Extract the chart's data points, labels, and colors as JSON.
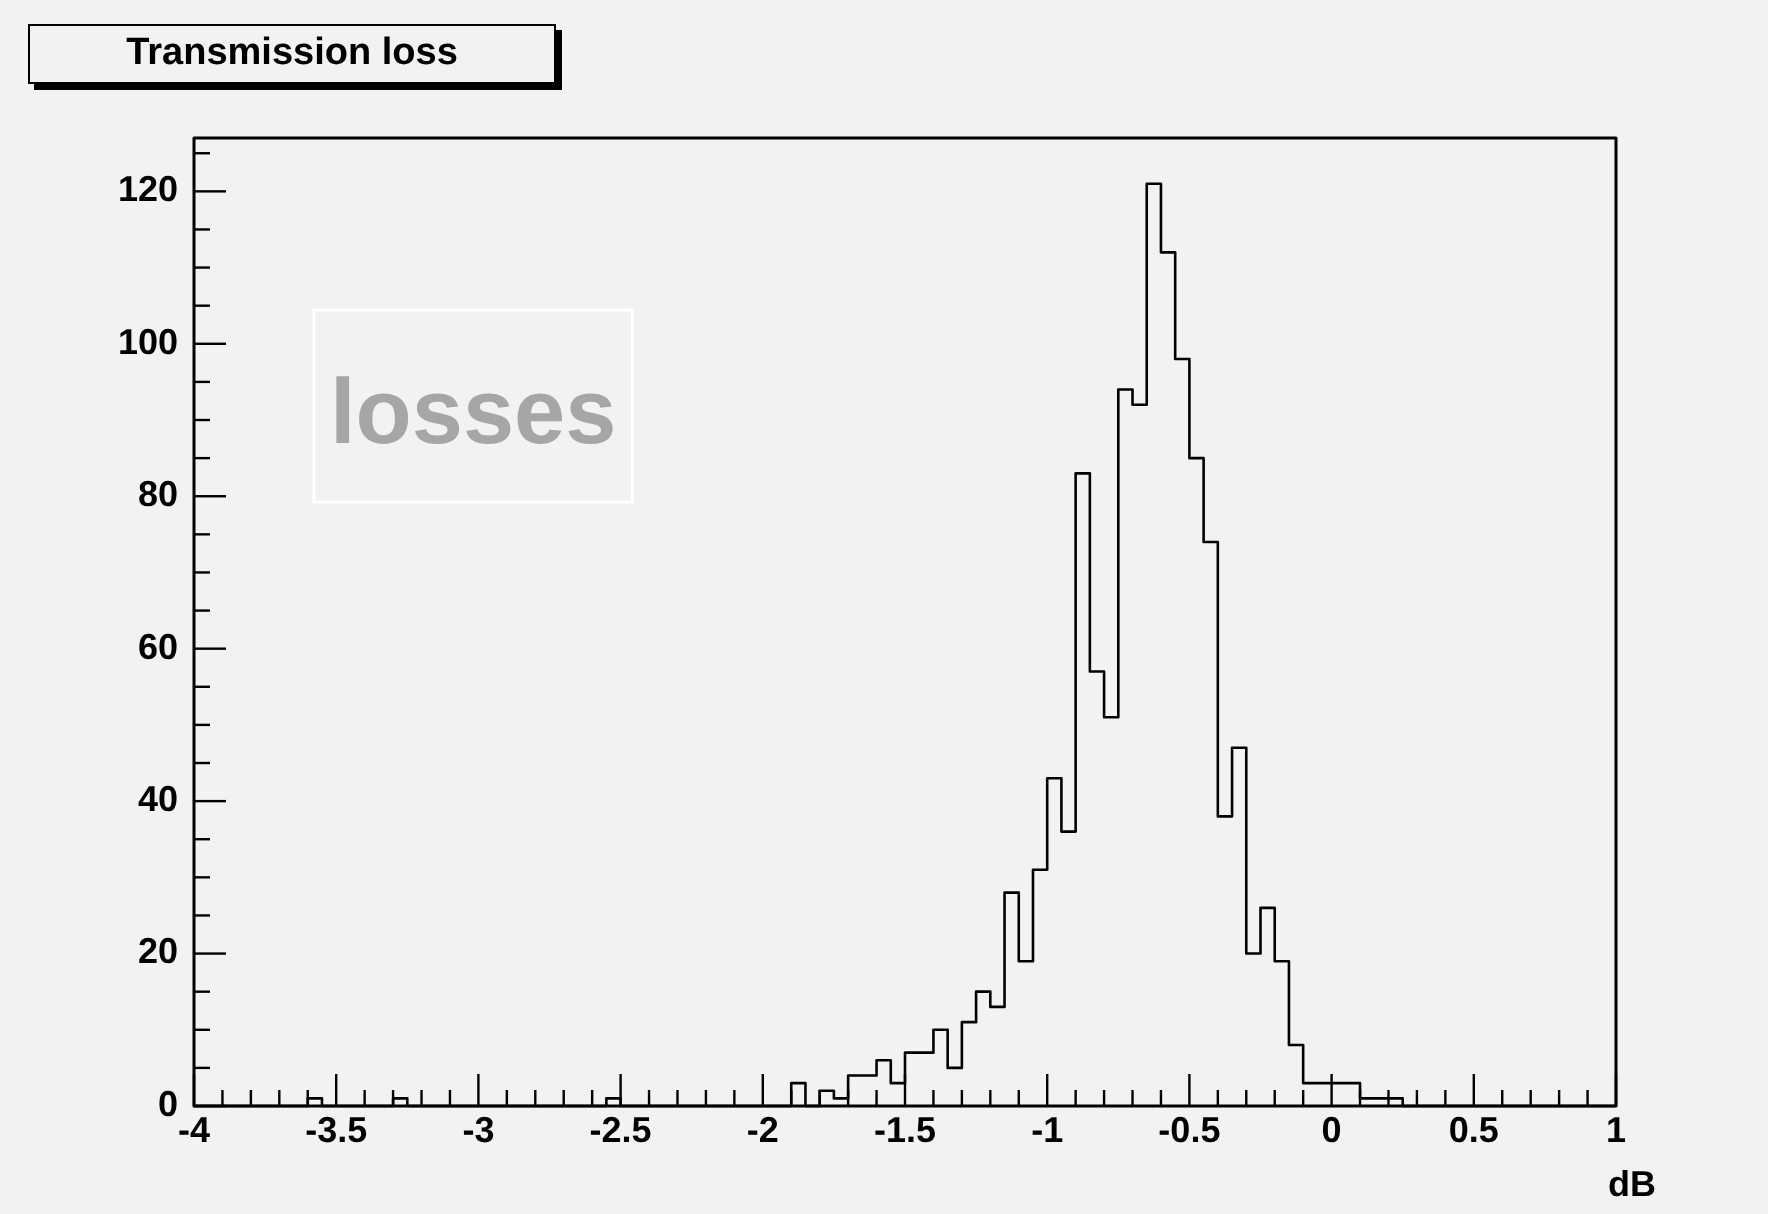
{
  "chart_data": {
    "type": "histogram",
    "title": "Transmission loss",
    "xlabel": "dB",
    "annotations": [
      "losses"
    ],
    "bins": [
      -4,
      -3.95,
      -3.9,
      -3.85,
      -3.8,
      -3.75,
      -3.7,
      -3.65,
      -3.6,
      -3.55,
      -3.5,
      -3.45,
      -3.4,
      -3.35,
      -3.3,
      -3.25,
      -3.2,
      -3.15,
      -3.1,
      -3.05,
      -3,
      -2.95,
      -2.9,
      -2.85,
      -2.8,
      -2.75,
      -2.7,
      -2.65,
      -2.6,
      -2.55,
      -2.5,
      -2.45,
      -2.4,
      -2.35,
      -2.3,
      -2.25,
      -2.2,
      -2.15,
      -2.1,
      -2.05,
      -2,
      -1.95,
      -1.9,
      -1.85,
      -1.8,
      -1.75,
      -1.7,
      -1.65,
      -1.6,
      -1.55,
      -1.5,
      -1.45,
      -1.4,
      -1.35,
      -1.3,
      -1.25,
      -1.2,
      -1.15,
      -1.1,
      -1.05,
      -1,
      -0.95,
      -0.9,
      -0.85,
      -0.8,
      -0.75,
      -0.7,
      -0.65,
      -0.6,
      -0.55,
      -0.5,
      -0.45,
      -0.4,
      -0.35,
      -0.3,
      -0.25,
      -0.2,
      -0.15,
      -0.1,
      -0.05,
      0,
      0.05,
      0.1,
      0.15,
      0.2,
      0.25,
      0.3,
      0.35,
      0.4,
      0.45,
      0.5,
      0.55,
      0.6,
      0.65,
      0.7,
      0.75,
      0.8,
      0.85,
      0.9,
      0.95,
      1
    ],
    "values": [
      0,
      0,
      0,
      0,
      0,
      0,
      0,
      0,
      1,
      0,
      0,
      0,
      0,
      0,
      1,
      0,
      0,
      0,
      0,
      0,
      0,
      0,
      0,
      0,
      0,
      0,
      0,
      0,
      0,
      1,
      0,
      0,
      0,
      0,
      0,
      0,
      0,
      0,
      0,
      0,
      0,
      0,
      3,
      0,
      2,
      1,
      4,
      4,
      6,
      3,
      7,
      7,
      10,
      5,
      11,
      15,
      13,
      28,
      19,
      31,
      43,
      36,
      83,
      57,
      51,
      94,
      92,
      121,
      112,
      98,
      85,
      74,
      38,
      47,
      20,
      26,
      19,
      8,
      3,
      3,
      3,
      3,
      1,
      1,
      1,
      0,
      0,
      0,
      0,
      0,
      0,
      0,
      0,
      0,
      0,
      0,
      0,
      0,
      0,
      0
    ],
    "color": "#000000",
    "grid": false,
    "legend": false,
    "xlim": [
      -4,
      1
    ],
    "ylim": [
      0,
      127
    ],
    "xticks": [
      -4,
      {
        "value": -3.9,
        "label": null
      },
      {
        "value": -3.8,
        "label": null
      },
      {
        "value": -3.7,
        "label": null
      },
      {
        "value": -3.6,
        "label": null
      },
      -3.5,
      {
        "value": -3.4,
        "label": null
      },
      {
        "value": -3.3,
        "label": null
      },
      {
        "value": -3.2,
        "label": null
      },
      {
        "value": -3.1,
        "label": null
      },
      -3,
      {
        "value": -2.9,
        "label": null
      },
      {
        "value": -2.8,
        "label": null
      },
      {
        "value": -2.7,
        "label": null
      },
      {
        "value": -2.6,
        "label": null
      },
      -2.5,
      {
        "value": -2.4,
        "label": null
      },
      {
        "value": -2.3,
        "label": null
      },
      {
        "value": -2.2,
        "label": null
      },
      {
        "value": -2.1,
        "label": null
      },
      -2,
      {
        "value": -1.9,
        "label": null
      },
      {
        "value": -1.8,
        "label": null
      },
      {
        "value": -1.7,
        "label": null
      },
      {
        "value": -1.6,
        "label": null
      },
      -1.5,
      {
        "value": -1.4,
        "label": null
      },
      {
        "value": -1.3,
        "label": null
      },
      {
        "value": -1.2,
        "label": null
      },
      {
        "value": -1.1,
        "label": null
      },
      -1,
      {
        "value": -0.9,
        "label": null
      },
      {
        "value": -0.8,
        "label": null
      },
      {
        "value": -0.7,
        "label": null
      },
      {
        "value": -0.6,
        "label": null
      },
      -0.5,
      {
        "value": -0.4,
        "label": null
      },
      {
        "value": -0.3,
        "label": null
      },
      {
        "value": -0.2,
        "label": null
      },
      {
        "value": -0.1,
        "label": null
      },
      0,
      {
        "value": 0.1,
        "label": null
      },
      {
        "value": 0.2,
        "label": null
      },
      {
        "value": 0.3,
        "label": null
      },
      {
        "value": 0.4,
        "label": null
      },
      0.5,
      {
        "value": 0.6,
        "label": null
      },
      {
        "value": 0.7,
        "label": null
      },
      {
        "value": 0.8,
        "label": null
      },
      {
        "value": 0.9,
        "label": null
      },
      1
    ],
    "yticks": [
      0,
      {
        "value": 5,
        "label": null
      },
      {
        "value": 10,
        "label": null
      },
      {
        "value": 15,
        "label": null
      },
      20,
      {
        "value": 25,
        "label": null
      },
      {
        "value": 30,
        "label": null
      },
      {
        "value": 35,
        "label": null
      },
      40,
      {
        "value": 45,
        "label": null
      },
      {
        "value": 50,
        "label": null
      },
      {
        "value": 55,
        "label": null
      },
      60,
      {
        "value": 65,
        "label": null
      },
      {
        "value": 70,
        "label": null
      },
      {
        "value": 75,
        "label": null
      },
      80,
      {
        "value": 85,
        "label": null
      },
      {
        "value": 90,
        "label": null
      },
      {
        "value": 95,
        "label": null
      },
      100,
      {
        "value": 105,
        "label": null
      },
      {
        "value": 110,
        "label": null
      },
      {
        "value": 115,
        "label": null
      },
      120,
      {
        "value": 125,
        "label": null
      }
    ]
  }
}
